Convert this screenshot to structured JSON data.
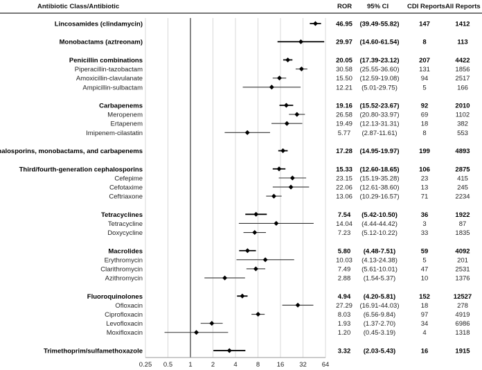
{
  "headers": {
    "label": "Antibiotic Class/Antibiotic",
    "ror": "ROR",
    "ci": "95% CI",
    "cdi": "CDI Reports",
    "all": "All Reports"
  },
  "chart_data": {
    "type": "forest",
    "x_scale": "log2",
    "xlim": [
      0.25,
      64
    ],
    "x_ticks": [
      "0.25",
      "0.5",
      "1",
      "2",
      "4",
      "8",
      "16",
      "32",
      "64"
    ],
    "reference_line": 1,
    "grid": true,
    "rows": [
      {
        "label": "Lincosamides (clindamycin)",
        "group": true,
        "ror": 46.95,
        "lo": 39.49,
        "hi": 55.82,
        "ci": "(39.49-55.82)",
        "cdi": "147",
        "all": "1412"
      },
      {
        "label": "Monobactams (aztreonam)",
        "group": true,
        "ror": 29.97,
        "lo": 14.6,
        "hi": 61.54,
        "ci": "(14.60-61.54)",
        "cdi": "8",
        "all": "113"
      },
      {
        "label": "Penicillin combinations",
        "group": true,
        "ror": 20.05,
        "lo": 17.39,
        "hi": 23.12,
        "ci": "(17.39-23.12)",
        "cdi": "207",
        "all": "4422"
      },
      {
        "label": "Piperacillin-tazobactam",
        "group": false,
        "ror": 30.58,
        "lo": 25.55,
        "hi": 36.6,
        "ci": "(25.55-36.60)",
        "cdi": "131",
        "all": "1856"
      },
      {
        "label": "Amoxicillin-clavulanate",
        "group": false,
        "ror": 15.5,
        "lo": 12.59,
        "hi": 19.08,
        "ci": "(12.59-19.08)",
        "cdi": "94",
        "all": "2517"
      },
      {
        "label": "Ampicillin-sulbactam",
        "group": false,
        "ror": 12.21,
        "lo": 5.01,
        "hi": 29.75,
        "ci": "(5.01-29.75)",
        "cdi": "5",
        "all": "166"
      },
      {
        "label": "Carbapenems",
        "group": true,
        "ror": 19.16,
        "lo": 15.52,
        "hi": 23.67,
        "ci": "(15.52-23.67)",
        "cdi": "92",
        "all": "2010"
      },
      {
        "label": "Meropenem",
        "group": false,
        "ror": 26.58,
        "lo": 20.8,
        "hi": 33.97,
        "ci": "(20.80-33.97)",
        "cdi": "69",
        "all": "1102"
      },
      {
        "label": "Ertapenem",
        "group": false,
        "ror": 19.49,
        "lo": 12.13,
        "hi": 31.31,
        "ci": "(12.13-31.31)",
        "cdi": "18",
        "all": "382"
      },
      {
        "label": "Imipenem-cilastatin",
        "group": false,
        "ror": 5.77,
        "lo": 2.87,
        "hi": 11.61,
        "ci": "(2.87-11.61)",
        "cdi": "8",
        "all": "553"
      },
      {
        "label": "Cephalosporins, monobactams, and carbapenems",
        "group": true,
        "ror": 17.28,
        "lo": 14.95,
        "hi": 19.97,
        "ci": "(14.95-19.97)",
        "cdi": "199",
        "all": "4893"
      },
      {
        "label": "Third/fourth-generation cephalosporins",
        "group": true,
        "ror": 15.33,
        "lo": 12.6,
        "hi": 18.65,
        "ci": "(12.60-18.65)",
        "cdi": "106",
        "all": "2875"
      },
      {
        "label": "Cefepime",
        "group": false,
        "ror": 23.15,
        "lo": 15.19,
        "hi": 35.28,
        "ci": "(15.19-35.28)",
        "cdi": "23",
        "all": "415"
      },
      {
        "label": "Cefotaxime",
        "group": false,
        "ror": 22.06,
        "lo": 12.61,
        "hi": 38.6,
        "ci": "(12.61-38.60)",
        "cdi": "13",
        "all": "245"
      },
      {
        "label": "Ceftriaxone",
        "group": false,
        "ror": 13.06,
        "lo": 10.29,
        "hi": 16.57,
        "ci": "(10.29-16.57)",
        "cdi": "71",
        "all": "2234"
      },
      {
        "label": "Tetracyclines",
        "group": true,
        "ror": 7.54,
        "lo": 5.42,
        "hi": 10.5,
        "ci": "(5.42-10.50)",
        "cdi": "36",
        "all": "1922"
      },
      {
        "label": "Tetracycline",
        "group": false,
        "ror": 14.04,
        "lo": 4.44,
        "hi": 44.42,
        "ci": "(4.44-44.42)",
        "cdi": "3",
        "all": "87"
      },
      {
        "label": "Doxycycline",
        "group": false,
        "ror": 7.23,
        "lo": 5.12,
        "hi": 10.22,
        "ci": "(5.12-10.22)",
        "cdi": "33",
        "all": "1835"
      },
      {
        "label": "Macrolides",
        "group": true,
        "ror": 5.8,
        "lo": 4.48,
        "hi": 7.51,
        "ci": "(4.48-7.51)",
        "cdi": "59",
        "all": "4092"
      },
      {
        "label": "Erythromycin",
        "group": false,
        "ror": 10.03,
        "lo": 4.13,
        "hi": 24.38,
        "ci": "(4.13-24.38)",
        "cdi": "5",
        "all": "201"
      },
      {
        "label": "Clarithromycin",
        "group": false,
        "ror": 7.49,
        "lo": 5.61,
        "hi": 10.01,
        "ci": "(5.61-10.01)",
        "cdi": "47",
        "all": "2531"
      },
      {
        "label": "Azithromycin",
        "group": false,
        "ror": 2.88,
        "lo": 1.54,
        "hi": 5.37,
        "ci": "(1.54-5.37)",
        "cdi": "10",
        "all": "1376"
      },
      {
        "label": "Fluoroquinolones",
        "group": true,
        "ror": 4.94,
        "lo": 4.2,
        "hi": 5.81,
        "ci": "(4.20-5.81)",
        "cdi": "152",
        "all": "12527"
      },
      {
        "label": "Ofloxacin",
        "group": false,
        "ror": 27.29,
        "lo": 16.91,
        "hi": 44.03,
        "ci": "(16.91-44.03)",
        "cdi": "18",
        "all": "278"
      },
      {
        "label": "Ciprofloxacin",
        "group": false,
        "ror": 8.03,
        "lo": 6.56,
        "hi": 9.84,
        "ci": "(6.56-9.84)",
        "cdi": "97",
        "all": "4919"
      },
      {
        "label": "Levofloxacin",
        "group": false,
        "ror": 1.93,
        "lo": 1.37,
        "hi": 2.7,
        "ci": "(1.37-2.70)",
        "cdi": "34",
        "all": "6986"
      },
      {
        "label": "Moxifloxacin",
        "group": false,
        "ror": 1.2,
        "lo": 0.45,
        "hi": 3.19,
        "ci": "(0.45-3.19)",
        "cdi": "4",
        "all": "1318"
      },
      {
        "label": "Trimethoprim/sulfamethoxazole",
        "group": true,
        "ror": 3.32,
        "lo": 2.03,
        "hi": 5.43,
        "ci": "(2.03-5.43)",
        "cdi": "16",
        "all": "1915"
      }
    ]
  }
}
